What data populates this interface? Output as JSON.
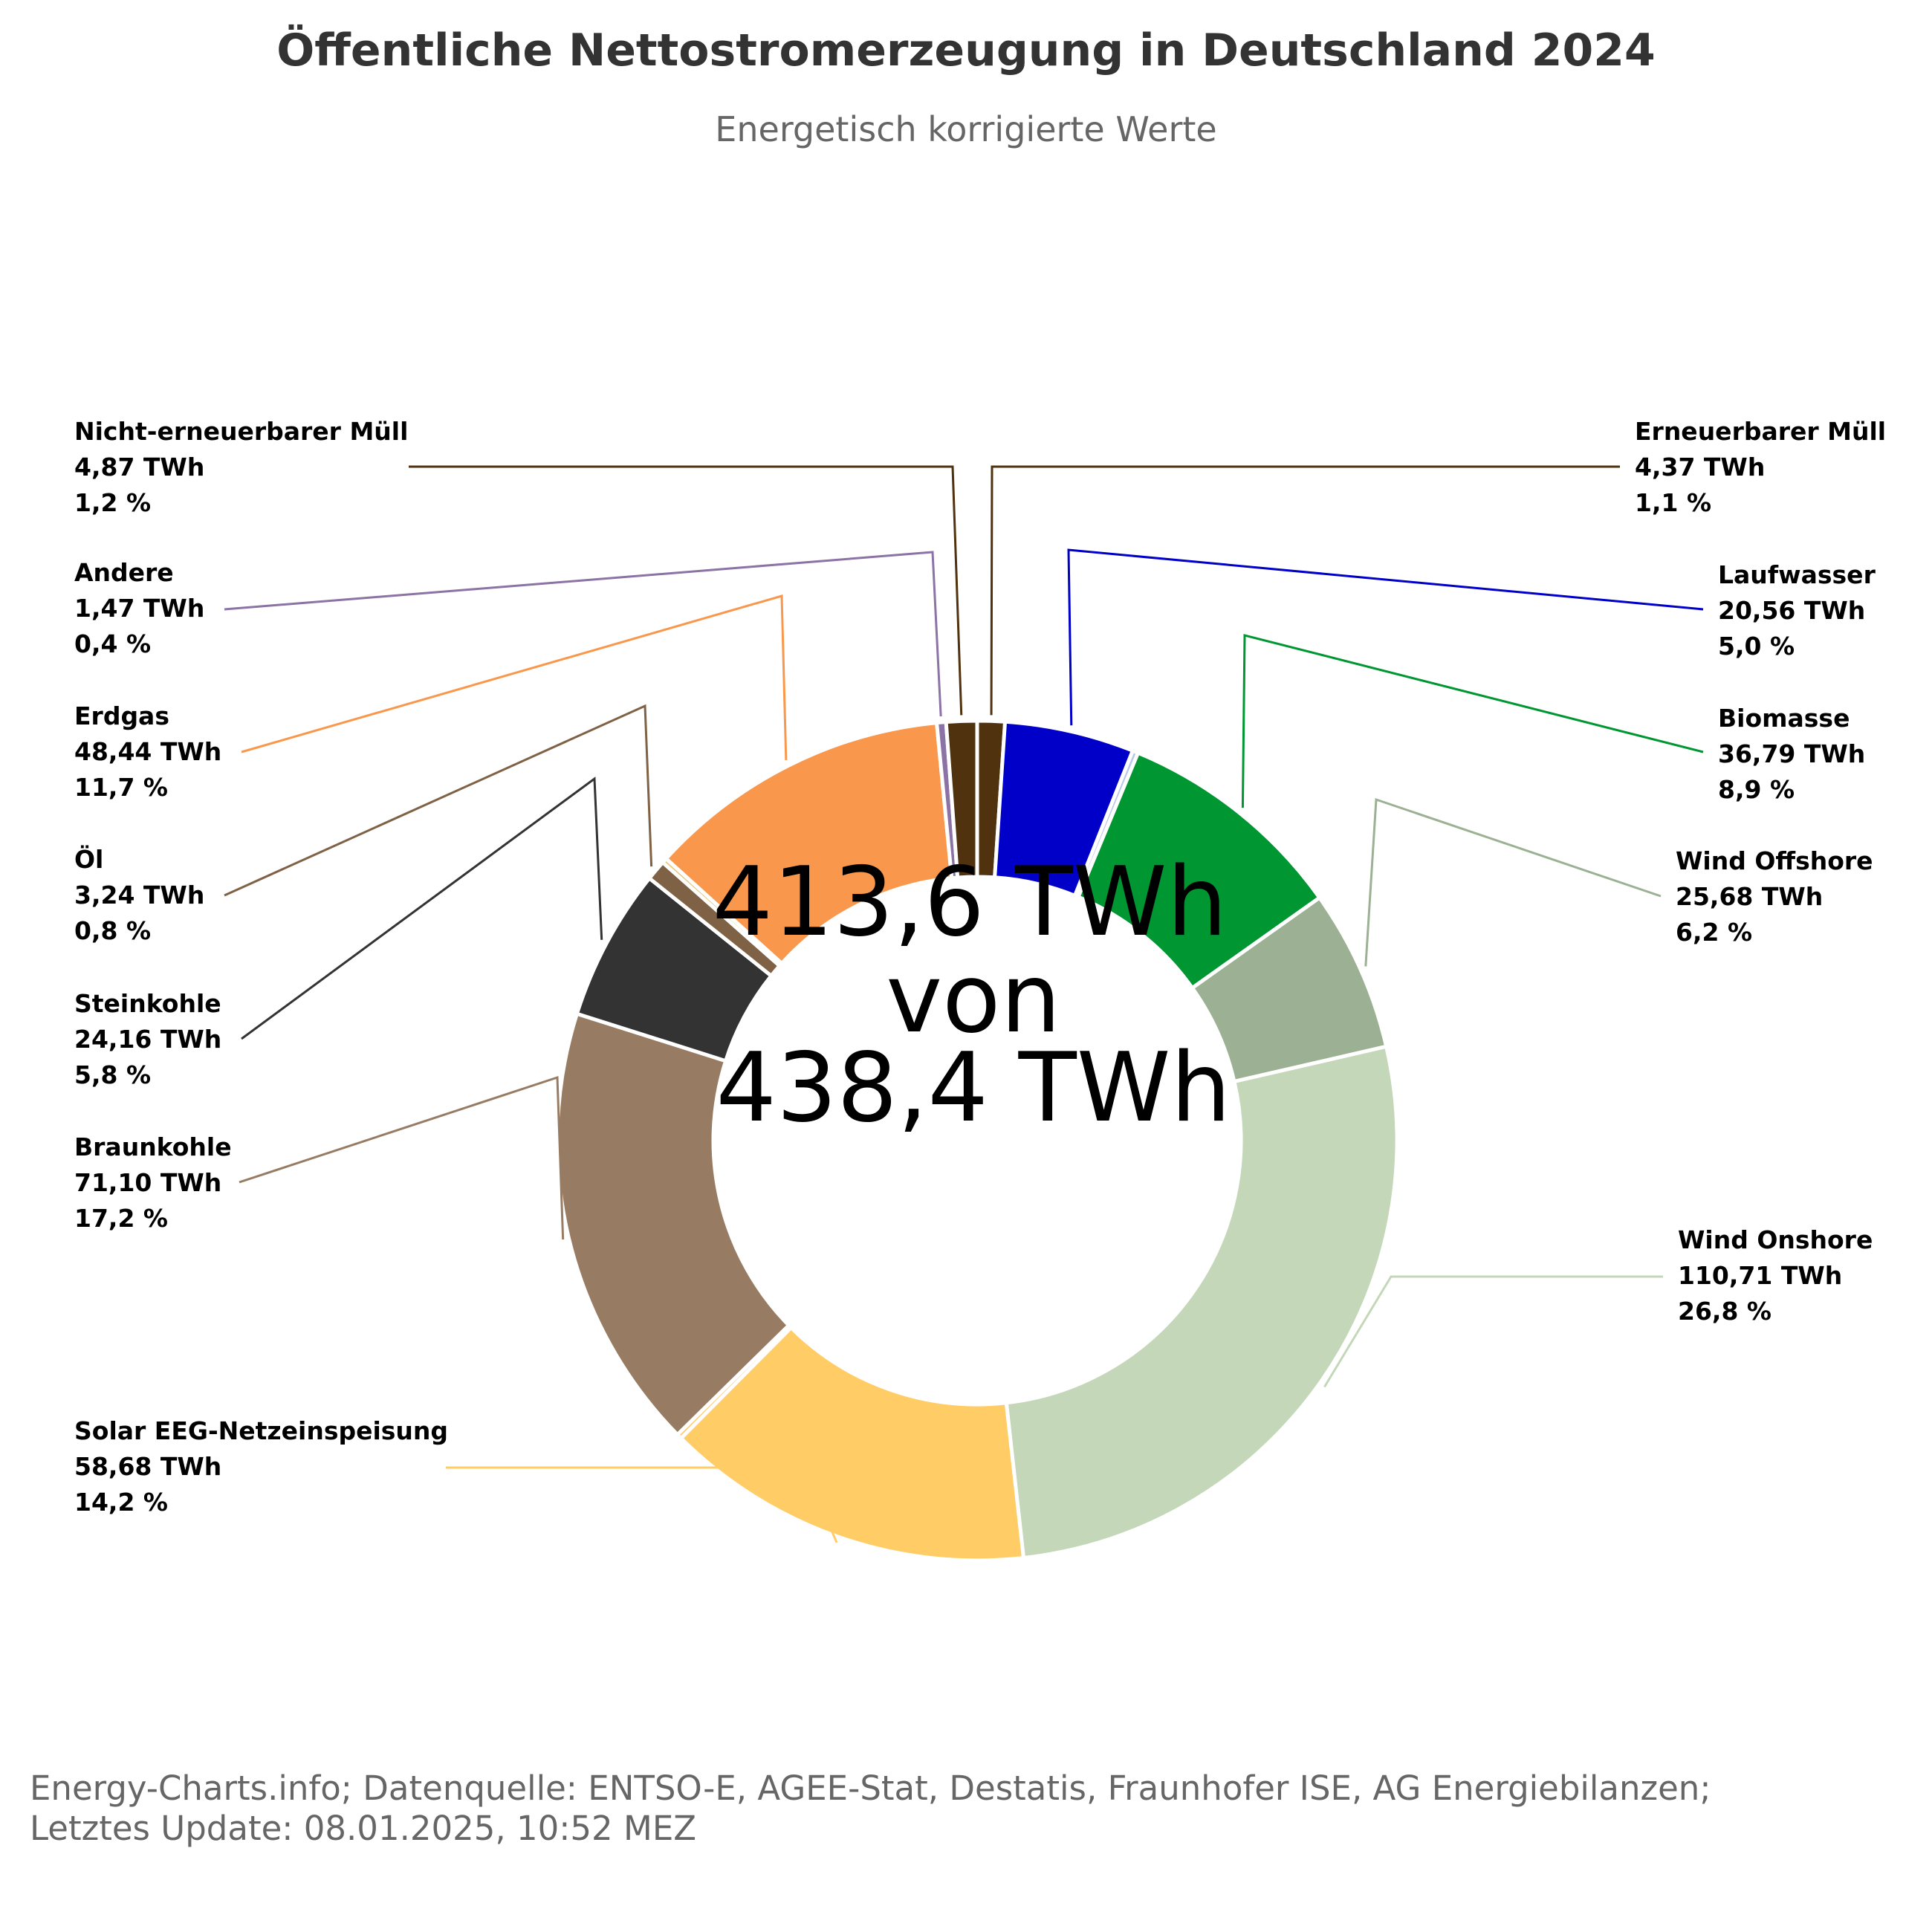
{
  "chart_data": {
    "type": "pie",
    "title": "Öffentliche Nettostromerzeugung in Deutschland 2024",
    "subtitle": "Energetisch korrigierte Werte",
    "center_label": [
      "413,6 TWh",
      "von",
      "438,4 TWh"
    ],
    "credits": [
      "Energy-Charts.info; Datenquelle: ENTSO-E, AGEE-Stat, Destatis, Fraunhofer ISE, AG Energiebilanzen;",
      "Letztes Update: 08.01.2025, 10:52 MEZ"
    ],
    "unit": "TWh",
    "slices": [
      {
        "name": "Erneuerbarer Müll",
        "value": 4.37,
        "value_label": "4,37 TWh",
        "percent_label": "1,1 %",
        "color": "#50320e"
      },
      {
        "name": "Laufwasser",
        "value": 20.56,
        "value_label": "20,56 TWh",
        "percent_label": "5,0 %",
        "color": "#0000c8"
      },
      {
        "name": "",
        "value": 0.9,
        "value_label": "",
        "percent_label": "",
        "color": "#b8c8e8"
      },
      {
        "name": "Biomasse",
        "value": 36.79,
        "value_label": "36,79 TWh",
        "percent_label": "8,9 %",
        "color": "#009632"
      },
      {
        "name": "Wind Offshore",
        "value": 25.68,
        "value_label": "25,68 TWh",
        "percent_label": "6,2 %",
        "color": "#9cb194"
      },
      {
        "name": "Wind Onshore",
        "value": 110.71,
        "value_label": "110,71 TWh",
        "percent_label": "26,8 %",
        "color": "#c4d8b9"
      },
      {
        "name": "Solar EEG-Netzeinspeisung",
        "value": 58.68,
        "value_label": "58,68 TWh",
        "percent_label": "14,2 %",
        "color": "#ffcc66"
      },
      {
        "name": "",
        "value": 0.8,
        "value_label": "",
        "percent_label": "",
        "color": "#ffcc66"
      },
      {
        "name": "Braunkohle",
        "value": 71.1,
        "value_label": "71,10 TWh",
        "percent_label": "17,2 %",
        "color": "#977c63"
      },
      {
        "name": "Steinkohle",
        "value": 24.16,
        "value_label": "24,16 TWh",
        "percent_label": "5,8 %",
        "color": "#333333"
      },
      {
        "name": "Öl",
        "value": 3.24,
        "value_label": "3,24 TWh",
        "percent_label": "0,8 %",
        "color": "#7f6245"
      },
      {
        "name": "",
        "value": 0.8,
        "value_label": "",
        "percent_label": "",
        "color": "#e6c87a"
      },
      {
        "name": "Erdgas",
        "value": 48.44,
        "value_label": "48,44 TWh",
        "percent_label": "11,7 %",
        "color": "#f9984c"
      },
      {
        "name": "Andere",
        "value": 1.47,
        "value_label": "1,47 TWh",
        "percent_label": "0,4 %",
        "color": "#8c73a6"
      },
      {
        "name": "Nicht-erneuerbarer Müll",
        "value": 4.87,
        "value_label": "4,87 TWh",
        "percent_label": "1,2 %",
        "color": "#50320e"
      }
    ]
  }
}
